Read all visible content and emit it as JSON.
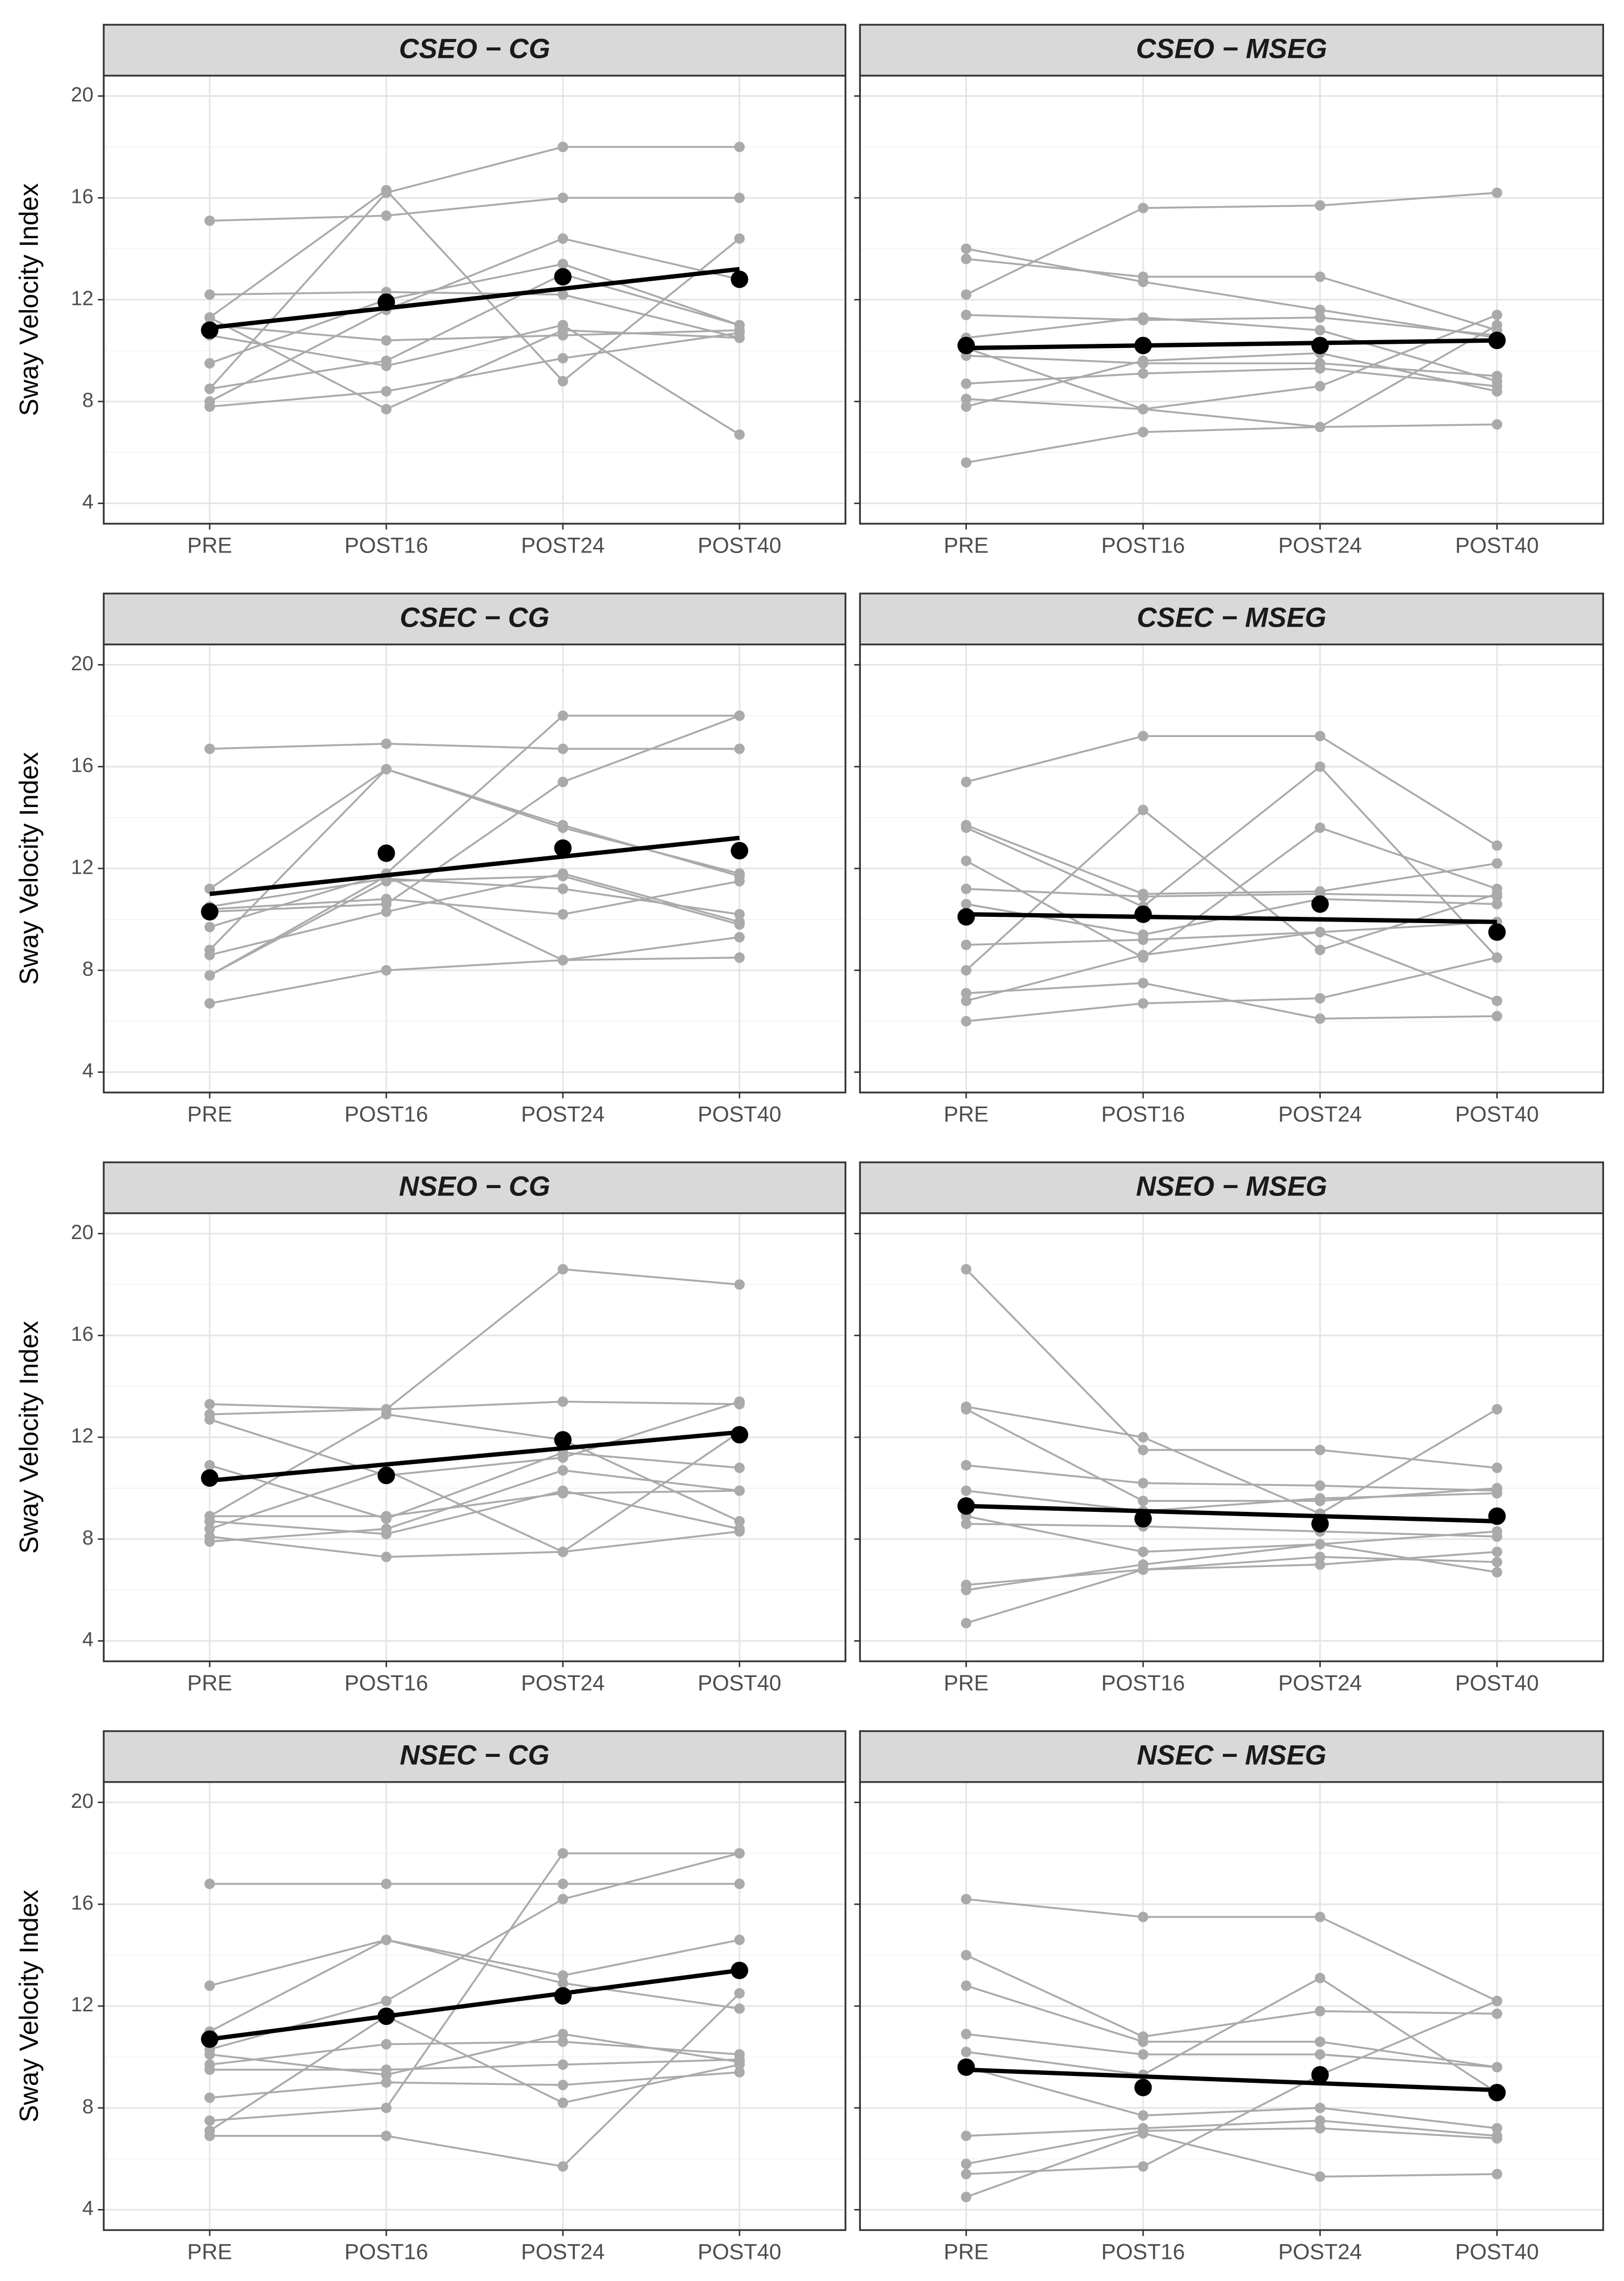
{
  "chart_data": [
    {
      "type": "line",
      "title": "CSEO − CG",
      "ylabel": "Sway Velocity Index",
      "ytick_labels": true,
      "categories": [
        "PRE",
        "POST16",
        "POST24",
        "POST40"
      ],
      "ylim": [
        3.2,
        20.8
      ],
      "yticks": [
        4,
        8,
        12,
        16,
        20
      ],
      "grid": true,
      "series": [
        {
          "color": "#aaaaaa",
          "values": [
            15.1,
            15.3,
            16.0,
            16.0
          ]
        },
        {
          "color": "#aaaaaa",
          "values": [
            8.5,
            16.2,
            18.0,
            18.0
          ]
        },
        {
          "color": "#aaaaaa",
          "values": [
            12.2,
            12.3,
            12.2,
            10.5
          ]
        },
        {
          "color": "#aaaaaa",
          "values": [
            11.3,
            16.3,
            8.8,
            14.4
          ]
        },
        {
          "color": "#aaaaaa",
          "values": [
            7.8,
            8.4,
            9.7,
            10.7
          ]
        },
        {
          "color": "#aaaaaa",
          "values": [
            8.0,
            11.6,
            14.4,
            12.8
          ]
        },
        {
          "color": "#aaaaaa",
          "values": [
            9.5,
            12.0,
            13.4,
            11.0
          ]
        },
        {
          "color": "#aaaaaa",
          "values": [
            11.0,
            10.4,
            10.6,
            10.8
          ]
        },
        {
          "color": "#aaaaaa",
          "values": [
            10.6,
            9.4,
            11.0,
            6.7
          ]
        },
        {
          "color": "#aaaaaa",
          "values": [
            11.3,
            7.7,
            10.8,
            10.5
          ]
        },
        {
          "color": "#aaaaaa",
          "values": [
            8.5,
            9.6,
            13.0,
            11.0
          ]
        }
      ],
      "mean": {
        "color": "#000000",
        "values": [
          10.8,
          11.9,
          12.9,
          12.8
        ]
      },
      "trend": {
        "color": "#000000",
        "values": [
          10.9,
          13.2
        ]
      }
    },
    {
      "type": "line",
      "title": "CSEO − MSEG",
      "ytick_labels": false,
      "categories": [
        "PRE",
        "POST16",
        "POST24",
        "POST40"
      ],
      "ylim": [
        3.2,
        20.8
      ],
      "yticks": [
        4,
        8,
        12,
        16,
        20
      ],
      "grid": true,
      "series": [
        {
          "color": "#aaaaaa",
          "values": [
            14.0,
            12.7,
            11.6,
            10.5
          ]
        },
        {
          "color": "#aaaaaa",
          "values": [
            12.2,
            15.6,
            15.7,
            16.2
          ]
        },
        {
          "color": "#aaaaaa",
          "values": [
            13.6,
            12.9,
            12.9,
            10.8
          ]
        },
        {
          "color": "#aaaaaa",
          "values": [
            11.4,
            11.2,
            11.3,
            10.6
          ]
        },
        {
          "color": "#aaaaaa",
          "values": [
            10.5,
            11.3,
            10.8,
            8.8
          ]
        },
        {
          "color": "#aaaaaa",
          "values": [
            9.8,
            9.5,
            9.5,
            9.0
          ]
        },
        {
          "color": "#aaaaaa",
          "values": [
            8.7,
            9.1,
            9.3,
            8.6
          ]
        },
        {
          "color": "#aaaaaa",
          "values": [
            8.1,
            7.7,
            8.6,
            11.4
          ]
        },
        {
          "color": "#aaaaaa",
          "values": [
            7.8,
            9.6,
            9.9,
            8.4
          ]
        },
        {
          "color": "#aaaaaa",
          "values": [
            5.6,
            6.8,
            7.0,
            7.1
          ]
        },
        {
          "color": "#aaaaaa",
          "values": [
            10.1,
            7.7,
            7.0,
            11.0
          ]
        }
      ],
      "mean": {
        "color": "#000000",
        "values": [
          10.2,
          10.2,
          10.2,
          10.4
        ]
      },
      "trend": {
        "color": "#000000",
        "values": [
          10.1,
          10.4
        ]
      }
    },
    {
      "type": "line",
      "title": "CSEC − CG",
      "ylabel": "Sway Velocity Index",
      "ytick_labels": true,
      "categories": [
        "PRE",
        "POST16",
        "POST24",
        "POST40"
      ],
      "ylim": [
        3.2,
        20.8
      ],
      "yticks": [
        4,
        8,
        12,
        16,
        20
      ],
      "grid": true,
      "series": [
        {
          "color": "#aaaaaa",
          "values": [
            16.7,
            16.9,
            16.7,
            16.7
          ]
        },
        {
          "color": "#aaaaaa",
          "values": [
            11.2,
            15.9,
            13.7,
            11.7
          ]
        },
        {
          "color": "#aaaaaa",
          "values": [
            9.7,
            11.8,
            18.0,
            18.0
          ]
        },
        {
          "color": "#aaaaaa",
          "values": [
            8.8,
            15.9,
            13.6,
            11.8
          ]
        },
        {
          "color": "#aaaaaa",
          "values": [
            10.3,
            10.6,
            15.4,
            18.0
          ]
        },
        {
          "color": "#aaaaaa",
          "values": [
            7.8,
            11.5,
            11.7,
            9.8
          ]
        },
        {
          "color": "#aaaaaa",
          "values": [
            8.6,
            10.3,
            11.8,
            9.9
          ]
        },
        {
          "color": "#aaaaaa",
          "values": [
            10.5,
            11.6,
            11.2,
            10.2
          ]
        },
        {
          "color": "#aaaaaa",
          "values": [
            10.4,
            10.8,
            10.2,
            11.5
          ]
        },
        {
          "color": "#aaaaaa",
          "values": [
            6.7,
            8.0,
            8.4,
            8.5
          ]
        },
        {
          "color": "#aaaaaa",
          "values": [
            7.8,
            11.7,
            8.4,
            9.3
          ]
        }
      ],
      "mean": {
        "color": "#000000",
        "values": [
          10.3,
          12.6,
          12.8,
          12.7
        ]
      },
      "trend": {
        "color": "#000000",
        "values": [
          11.0,
          13.2
        ]
      }
    },
    {
      "type": "line",
      "title": "CSEC − MSEG",
      "ytick_labels": false,
      "categories": [
        "PRE",
        "POST16",
        "POST24",
        "POST40"
      ],
      "ylim": [
        3.2,
        20.8
      ],
      "yticks": [
        4,
        8,
        12,
        16,
        20
      ],
      "grid": true,
      "series": [
        {
          "color": "#aaaaaa",
          "values": [
            15.4,
            17.2,
            17.2,
            12.9
          ]
        },
        {
          "color": "#aaaaaa",
          "values": [
            13.7,
            11.0,
            11.1,
            12.2
          ]
        },
        {
          "color": "#aaaaaa",
          "values": [
            13.6,
            10.5,
            16.0,
            8.5
          ]
        },
        {
          "color": "#aaaaaa",
          "values": [
            12.3,
            8.5,
            13.6,
            11.2
          ]
        },
        {
          "color": "#aaaaaa",
          "values": [
            11.2,
            10.9,
            11.0,
            10.9
          ]
        },
        {
          "color": "#aaaaaa",
          "values": [
            10.6,
            9.4,
            10.8,
            10.6
          ]
        },
        {
          "color": "#aaaaaa",
          "values": [
            9.0,
            9.2,
            9.5,
            9.9
          ]
        },
        {
          "color": "#aaaaaa",
          "values": [
            8.0,
            14.3,
            8.8,
            11.0
          ]
        },
        {
          "color": "#aaaaaa",
          "values": [
            7.1,
            7.5,
            6.1,
            6.2
          ]
        },
        {
          "color": "#aaaaaa",
          "values": [
            6.8,
            8.6,
            9.5,
            6.8
          ]
        },
        {
          "color": "#aaaaaa",
          "values": [
            6.0,
            6.7,
            6.9,
            8.5
          ]
        }
      ],
      "mean": {
        "color": "#000000",
        "values": [
          10.1,
          10.2,
          10.6,
          9.5
        ]
      },
      "trend": {
        "color": "#000000",
        "values": [
          10.2,
          9.9
        ]
      }
    },
    {
      "type": "line",
      "title": "NSEO − CG",
      "ylabel": "Sway Velocity Index",
      "ytick_labels": true,
      "categories": [
        "PRE",
        "POST16",
        "POST24",
        "POST40"
      ],
      "ylim": [
        3.2,
        20.8
      ],
      "yticks": [
        4,
        8,
        12,
        16,
        20
      ],
      "grid": true,
      "series": [
        {
          "color": "#aaaaaa",
          "values": [
            13.3,
            13.1,
            13.4,
            13.3
          ]
        },
        {
          "color": "#aaaaaa",
          "values": [
            12.9,
            13.1,
            18.6,
            18.0
          ]
        },
        {
          "color": "#aaaaaa",
          "values": [
            12.7,
            10.5,
            11.2,
            13.4
          ]
        },
        {
          "color": "#aaaaaa",
          "values": [
            10.9,
            8.8,
            11.4,
            10.8
          ]
        },
        {
          "color": "#aaaaaa",
          "values": [
            8.9,
            8.9,
            9.8,
            9.9
          ]
        },
        {
          "color": "#aaaaaa",
          "values": [
            8.7,
            8.2,
            9.9,
            8.4
          ]
        },
        {
          "color": "#aaaaaa",
          "values": [
            8.4,
            10.7,
            7.5,
            12.2
          ]
        },
        {
          "color": "#aaaaaa",
          "values": [
            8.1,
            7.3,
            7.5,
            8.3
          ]
        },
        {
          "color": "#aaaaaa",
          "values": [
            7.9,
            8.4,
            10.7,
            9.9
          ]
        },
        {
          "color": "#aaaaaa",
          "values": [
            8.9,
            12.9,
            11.9,
            8.7
          ]
        }
      ],
      "mean": {
        "color": "#000000",
        "values": [
          10.4,
          10.5,
          11.9,
          12.1
        ]
      },
      "trend": {
        "color": "#000000",
        "values": [
          10.3,
          12.2
        ]
      }
    },
    {
      "type": "line",
      "title": "NSEO − MSEG",
      "ytick_labels": false,
      "categories": [
        "PRE",
        "POST16",
        "POST24",
        "POST40"
      ],
      "ylim": [
        3.2,
        20.8
      ],
      "yticks": [
        4,
        8,
        12,
        16,
        20
      ],
      "grid": true,
      "series": [
        {
          "color": "#aaaaaa",
          "values": [
            18.6,
            11.5,
            11.5,
            10.8
          ]
        },
        {
          "color": "#aaaaaa",
          "values": [
            13.2,
            12.0,
            9.0,
            13.1
          ]
        },
        {
          "color": "#aaaaaa",
          "values": [
            13.1,
            9.5,
            9.5,
            10.0
          ]
        },
        {
          "color": "#aaaaaa",
          "values": [
            10.9,
            10.2,
            10.1,
            9.9
          ]
        },
        {
          "color": "#aaaaaa",
          "values": [
            9.9,
            9.1,
            9.6,
            9.8
          ]
        },
        {
          "color": "#aaaaaa",
          "values": [
            8.9,
            7.5,
            7.8,
            8.3
          ]
        },
        {
          "color": "#aaaaaa",
          "values": [
            8.6,
            8.5,
            8.3,
            8.1
          ]
        },
        {
          "color": "#aaaaaa",
          "values": [
            6.2,
            6.8,
            7.0,
            7.5
          ]
        },
        {
          "color": "#aaaaaa",
          "values": [
            6.0,
            7.0,
            7.8,
            6.7
          ]
        },
        {
          "color": "#aaaaaa",
          "values": [
            4.7,
            6.8,
            7.3,
            7.1
          ]
        }
      ],
      "mean": {
        "color": "#000000",
        "values": [
          9.3,
          8.8,
          8.6,
          8.9
        ]
      },
      "trend": {
        "color": "#000000",
        "values": [
          9.3,
          8.7
        ]
      }
    },
    {
      "type": "line",
      "title": "NSEC − CG",
      "ylabel": "Sway Velocity Index",
      "ytick_labels": true,
      "categories": [
        "PRE",
        "POST16",
        "POST24",
        "POST40"
      ],
      "ylim": [
        3.2,
        20.8
      ],
      "yticks": [
        4,
        8,
        12,
        16,
        20
      ],
      "grid": true,
      "series": [
        {
          "color": "#aaaaaa",
          "values": [
            16.8,
            16.8,
            16.8,
            16.8
          ]
        },
        {
          "color": "#aaaaaa",
          "values": [
            12.8,
            14.6,
            13.2,
            14.6
          ]
        },
        {
          "color": "#aaaaaa",
          "values": [
            11.0,
            14.6,
            12.9,
            11.9
          ]
        },
        {
          "color": "#aaaaaa",
          "values": [
            10.3,
            12.2,
            16.2,
            18.0
          ]
        },
        {
          "color": "#aaaaaa",
          "values": [
            9.7,
            10.5,
            10.6,
            10.1
          ]
        },
        {
          "color": "#aaaaaa",
          "values": [
            9.5,
            9.5,
            9.7,
            9.9
          ]
        },
        {
          "color": "#aaaaaa",
          "values": [
            8.4,
            9.0,
            8.9,
            9.4
          ]
        },
        {
          "color": "#aaaaaa",
          "values": [
            7.5,
            8.0,
            18.0,
            18.0
          ]
        },
        {
          "color": "#aaaaaa",
          "values": [
            7.1,
            11.6,
            8.2,
            9.7
          ]
        },
        {
          "color": "#aaaaaa",
          "values": [
            6.9,
            6.9,
            5.7,
            12.5
          ]
        },
        {
          "color": "#aaaaaa",
          "values": [
            10.1,
            9.3,
            10.9,
            9.8
          ]
        }
      ],
      "mean": {
        "color": "#000000",
        "values": [
          10.7,
          11.6,
          12.4,
          13.4
        ]
      },
      "trend": {
        "color": "#000000",
        "values": [
          10.7,
          13.4
        ]
      }
    },
    {
      "type": "line",
      "title": "NSEC − MSEG",
      "ytick_labels": false,
      "categories": [
        "PRE",
        "POST16",
        "POST24",
        "POST40"
      ],
      "ylim": [
        3.2,
        20.8
      ],
      "yticks": [
        4,
        8,
        12,
        16,
        20
      ],
      "grid": true,
      "series": [
        {
          "color": "#aaaaaa",
          "values": [
            16.2,
            15.5,
            15.5,
            12.2
          ]
        },
        {
          "color": "#aaaaaa",
          "values": [
            14.0,
            10.8,
            11.8,
            11.7
          ]
        },
        {
          "color": "#aaaaaa",
          "values": [
            12.8,
            10.6,
            10.6,
            9.6
          ]
        },
        {
          "color": "#aaaaaa",
          "values": [
            10.9,
            10.1,
            10.1,
            9.6
          ]
        },
        {
          "color": "#aaaaaa",
          "values": [
            10.2,
            9.3,
            13.1,
            8.6
          ]
        },
        {
          "color": "#aaaaaa",
          "values": [
            9.6,
            7.7,
            8.0,
            7.2
          ]
        },
        {
          "color": "#aaaaaa",
          "values": [
            6.9,
            7.2,
            7.5,
            6.9
          ]
        },
        {
          "color": "#aaaaaa",
          "values": [
            5.8,
            7.1,
            7.2,
            6.8
          ]
        },
        {
          "color": "#aaaaaa",
          "values": [
            5.4,
            5.7,
            9.3,
            12.2
          ]
        },
        {
          "color": "#aaaaaa",
          "values": [
            4.5,
            7.0,
            5.3,
            5.4
          ]
        }
      ],
      "mean": {
        "color": "#000000",
        "values": [
          9.6,
          8.8,
          9.3,
          8.6
        ]
      },
      "trend": {
        "color": "#000000",
        "values": [
          9.5,
          8.7
        ]
      }
    }
  ]
}
